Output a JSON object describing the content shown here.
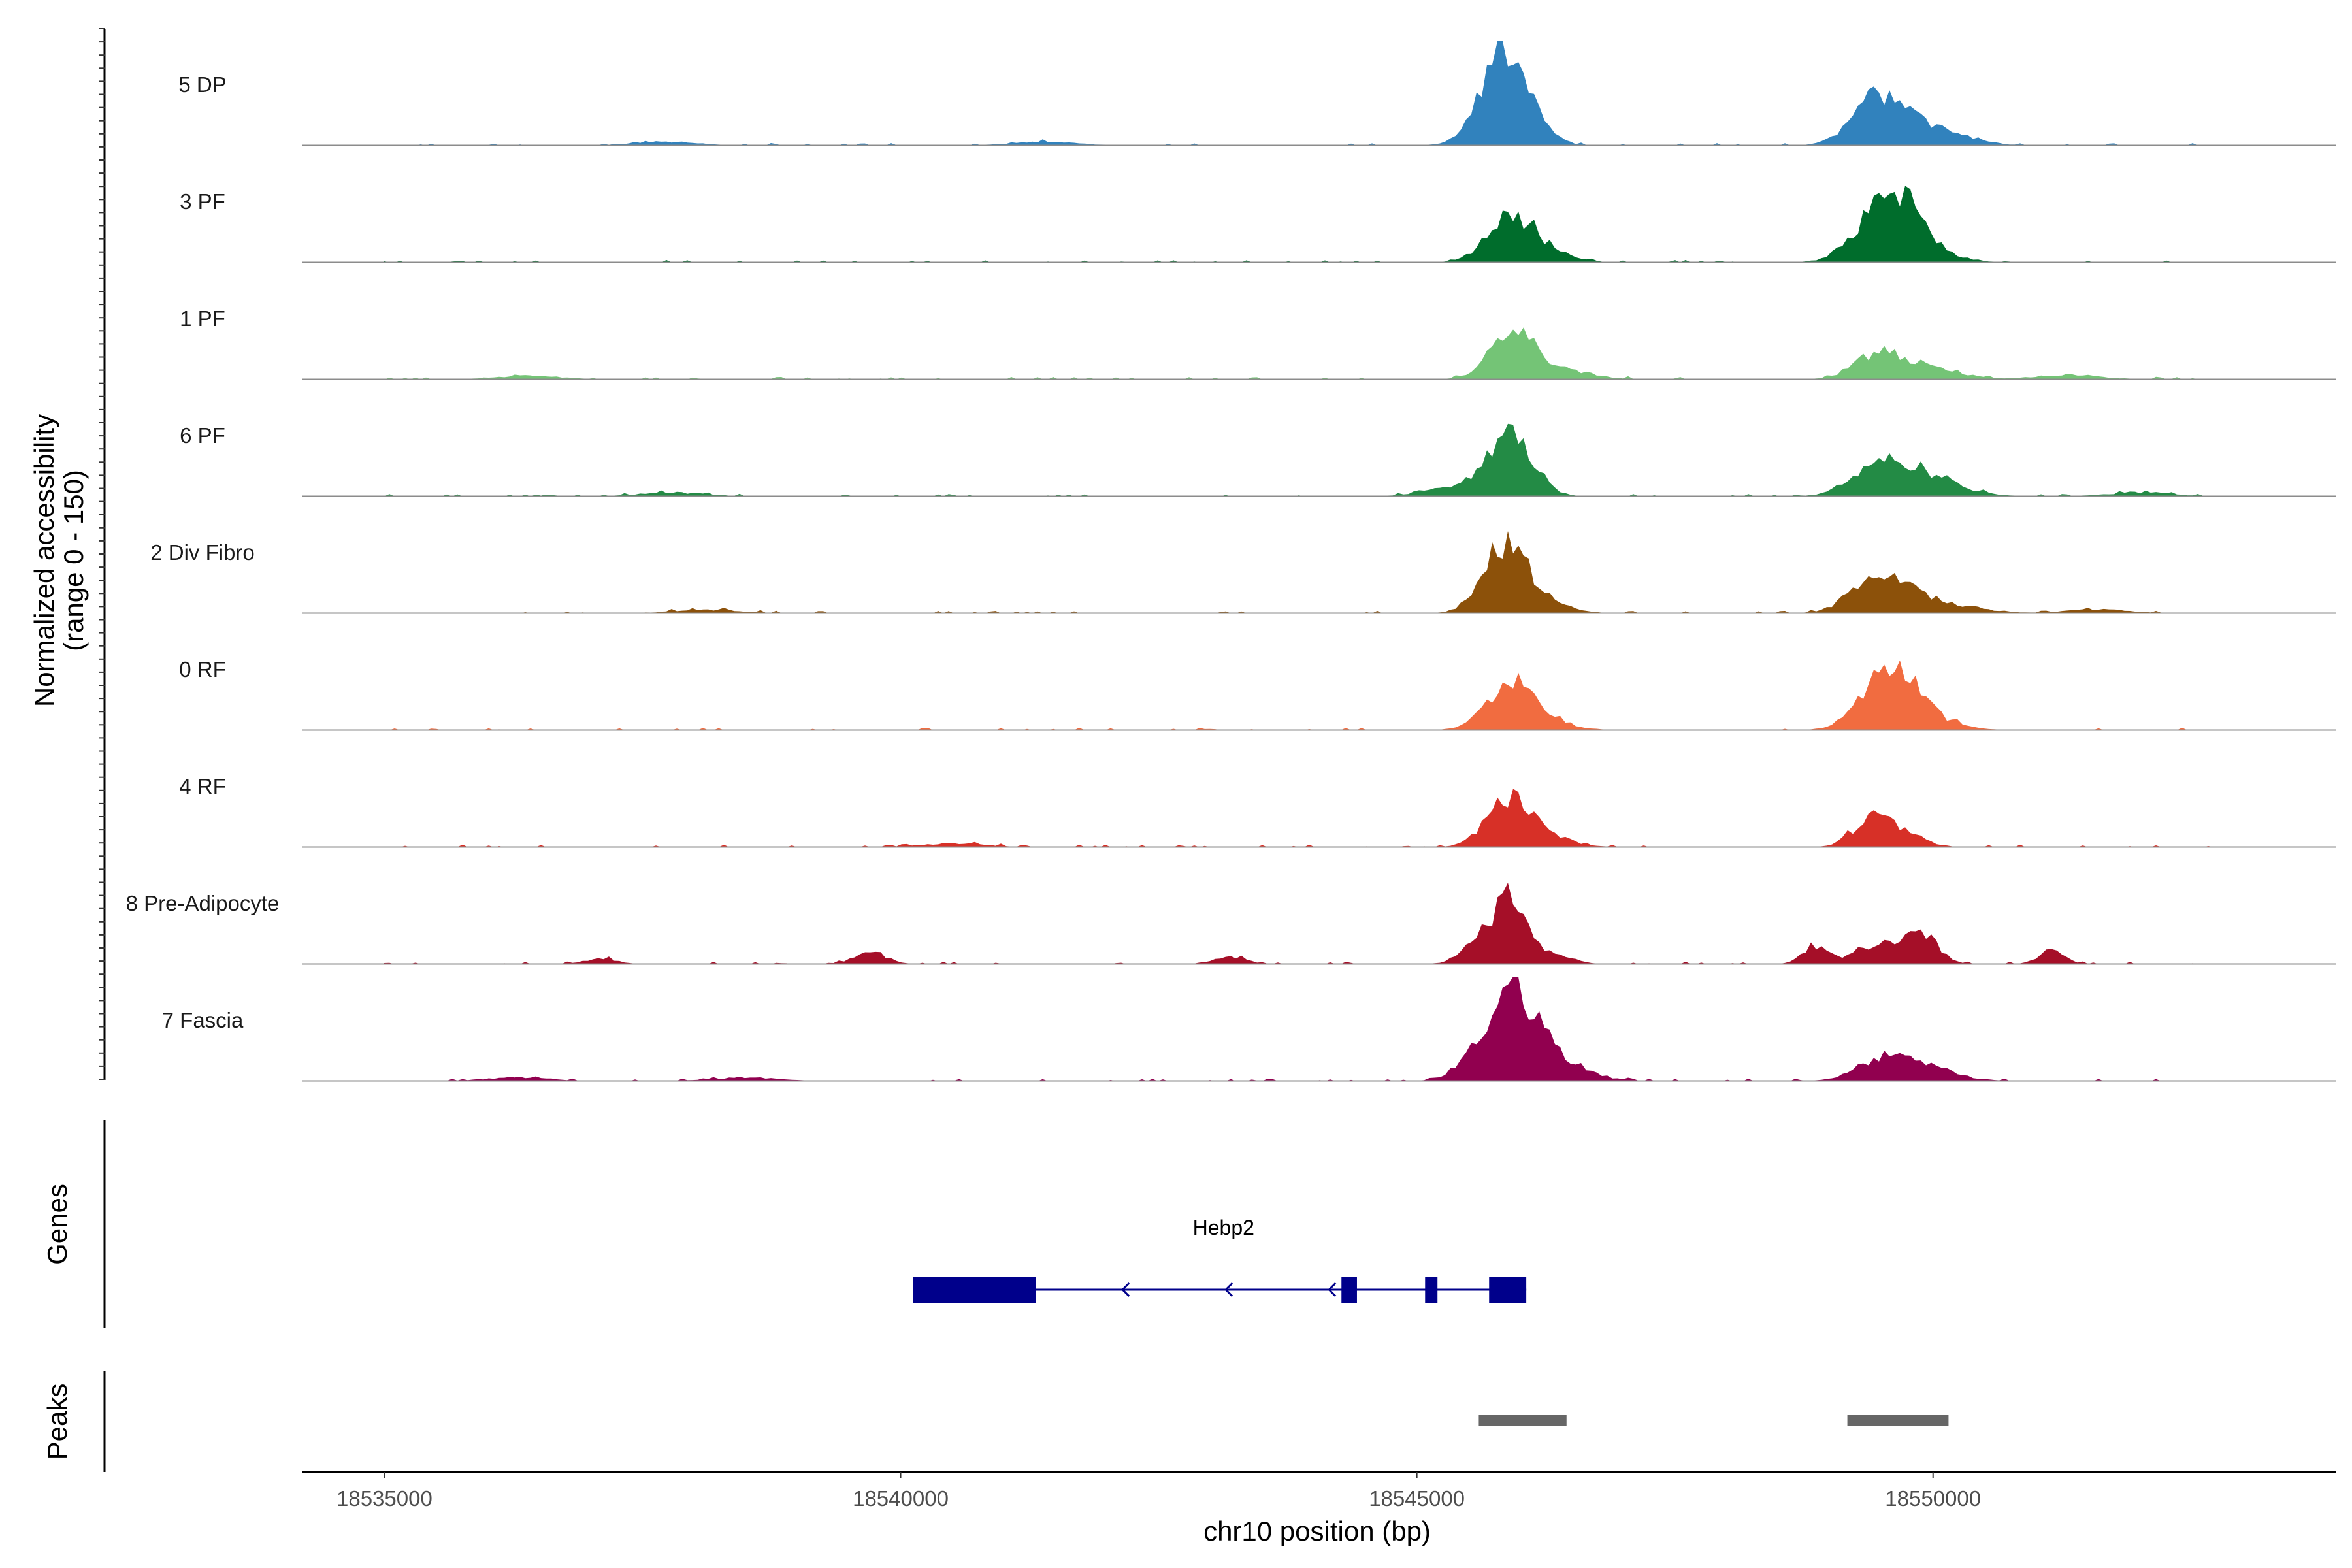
{
  "chart_data": {
    "type": "area",
    "region": "chr10",
    "xlabel": "chr10 position (bp)",
    "ylabel": [
      "Normalized accessibility",
      "(range 0 - 150)"
    ],
    "xlim": [
      18534200,
      18553900
    ],
    "ylim": [
      0,
      150
    ],
    "xticks": [
      {
        "value": 18535000,
        "label": "18535000"
      },
      {
        "value": 18540000,
        "label": "18540000"
      },
      {
        "value": 18545000,
        "label": "18545000"
      },
      {
        "value": 18550000,
        "label": "18550000"
      }
    ],
    "series": [
      {
        "name": "5 DP",
        "color": "#3182bd",
        "range": [
          18535000,
          18552900
        ],
        "peaks": [
          [
            18545900,
            100,
            220
          ],
          [
            18545650,
            18,
            200
          ],
          [
            18549400,
            42,
            220
          ],
          [
            18549700,
            22,
            260
          ],
          [
            18550100,
            12,
            300
          ],
          [
            18537700,
            4,
            300
          ],
          [
            18541400,
            4,
            300
          ]
        ]
      },
      {
        "name": "3 PF",
        "color": "#006d2c",
        "range": [
          18535000,
          18552900
        ],
        "peaks": [
          [
            18545900,
            45,
            220
          ],
          [
            18546200,
            12,
            250
          ],
          [
            18549400,
            40,
            230
          ],
          [
            18549700,
            55,
            200
          ],
          [
            18550000,
            10,
            250
          ]
        ]
      },
      {
        "name": "1 PF",
        "color": "#74c476",
        "range": [
          18535000,
          18552900
        ],
        "peaks": [
          [
            18545900,
            55,
            200
          ],
          [
            18546300,
            14,
            300
          ],
          [
            18549450,
            25,
            220
          ],
          [
            18549900,
            15,
            300
          ],
          [
            18551300,
            5,
            300
          ],
          [
            18536400,
            4,
            300
          ]
        ]
      },
      {
        "name": "6 PF",
        "color": "#238b45",
        "range": [
          18535000,
          18552900
        ],
        "peaks": [
          [
            18545900,
            65,
            220
          ],
          [
            18545300,
            10,
            250
          ],
          [
            18549450,
            25,
            250
          ],
          [
            18549800,
            20,
            300
          ],
          [
            18550100,
            8,
            300
          ],
          [
            18537800,
            4,
            300
          ],
          [
            18552000,
            4,
            300
          ]
        ]
      },
      {
        "name": "2 Div Fibro",
        "color": "#8c510a",
        "range": [
          18535000,
          18552900
        ],
        "peaks": [
          [
            18545850,
            75,
            210
          ],
          [
            18546200,
            12,
            250
          ],
          [
            18549400,
            32,
            230
          ],
          [
            18549700,
            20,
            250
          ],
          [
            18550200,
            8,
            300
          ],
          [
            18538100,
            4,
            300
          ],
          [
            18551600,
            4,
            300
          ]
        ]
      },
      {
        "name": "0 RF",
        "color": "#f16c40",
        "range": [
          18535000,
          18552900
        ],
        "peaks": [
          [
            18545900,
            48,
            220
          ],
          [
            18546200,
            12,
            250
          ],
          [
            18549500,
            42,
            240
          ],
          [
            18549700,
            38,
            200
          ],
          [
            18550000,
            10,
            260
          ]
        ]
      },
      {
        "name": "4 RF",
        "color": "#d73027",
        "range": [
          18535000,
          18552900
        ],
        "peaks": [
          [
            18545900,
            50,
            220
          ],
          [
            18546250,
            10,
            250
          ],
          [
            18549400,
            30,
            180
          ],
          [
            18549700,
            15,
            200
          ],
          [
            18540500,
            4,
            300
          ]
        ]
      },
      {
        "name": "8 Pre-Adipocyte",
        "color": "#a50f28",
        "range": [
          18535000,
          18552900
        ],
        "peaks": [
          [
            18545950,
            60,
            160
          ],
          [
            18545700,
            30,
            200
          ],
          [
            18546400,
            8,
            150
          ],
          [
            18549500,
            22,
            250
          ],
          [
            18549900,
            28,
            150
          ],
          [
            18548850,
            20,
            120
          ],
          [
            18551150,
            15,
            120
          ],
          [
            18539700,
            14,
            150
          ],
          [
            18537100,
            6,
            150
          ],
          [
            18543200,
            8,
            150
          ]
        ]
      },
      {
        "name": "7 Fascia",
        "color": "#91004f",
        "range": [
          18535000,
          18552900
        ],
        "peaks": [
          [
            18545900,
            100,
            220
          ],
          [
            18546300,
            25,
            300
          ],
          [
            18549500,
            22,
            250
          ],
          [
            18549900,
            15,
            300
          ],
          [
            18545500,
            10,
            200
          ],
          [
            18536300,
            4,
            300
          ],
          [
            18538500,
            4,
            300
          ]
        ]
      }
    ],
    "genes": {
      "title": "Genes",
      "color": "#00008b",
      "transcripts": [
        {
          "name": "Hebp2",
          "start": 18540120,
          "end": 18546060,
          "strand": "-",
          "exons": [
            [
              18540120,
              18541310
            ],
            [
              18544270,
              18544420
            ],
            [
              18545080,
              18545200
            ],
            [
              18545700,
              18546060
            ]
          ],
          "arrows": [
            18542150,
            18543150,
            18544150
          ]
        }
      ]
    },
    "peaks": {
      "title": "Peaks",
      "color": "#666666",
      "regions": [
        [
          18545600,
          18546450
        ],
        [
          18549170,
          18550150
        ]
      ]
    }
  }
}
